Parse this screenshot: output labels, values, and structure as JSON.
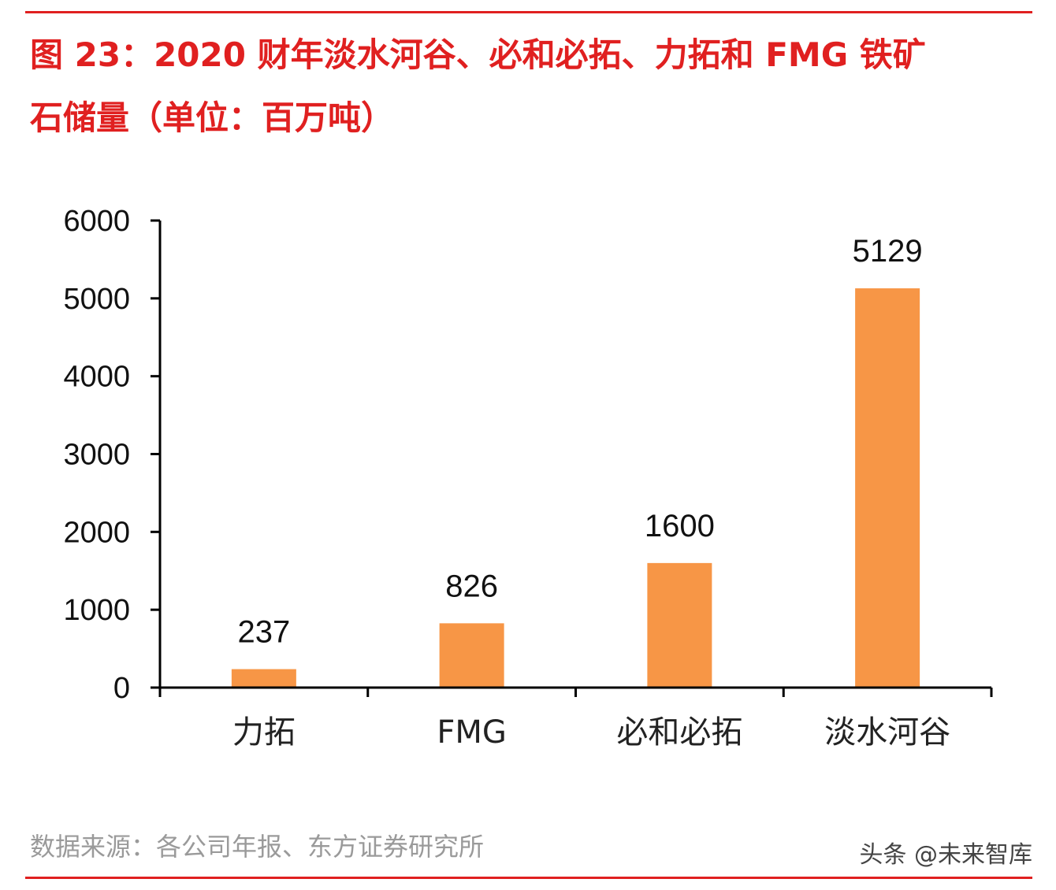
{
  "title": {
    "line1": "图 23：2020 财年淡水河谷、必和必拓、力拓和 FMG 铁矿",
    "line2": "石储量（单位：百万吨）"
  },
  "source": "数据来源：各公司年报、东方证券研究所",
  "watermark": "头条 @未来智库",
  "colors": {
    "accent": "#e02020",
    "bar": "#f79646",
    "axis": "#000000"
  },
  "chart_data": {
    "type": "bar",
    "categories": [
      "力拓",
      "FMG",
      "必和必拓",
      "淡水河谷"
    ],
    "values": [
      237,
      826,
      1600,
      5129
    ],
    "data_labels": [
      "237",
      "826",
      "1600",
      "5129"
    ],
    "yticks": [
      "0",
      "1000",
      "2000",
      "3000",
      "4000",
      "5000",
      "6000"
    ],
    "ylim": [
      0,
      6000
    ],
    "grid": false,
    "legend": "none"
  }
}
